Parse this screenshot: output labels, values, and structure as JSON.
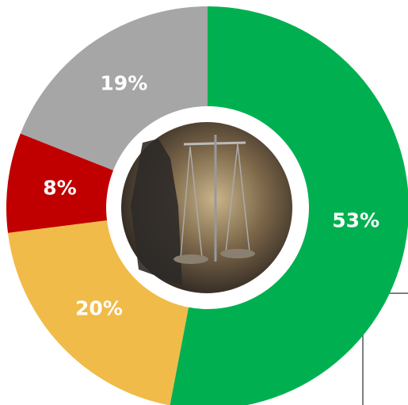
{
  "chart_data": {
    "type": "donut",
    "categories": [
      null,
      null,
      null,
      null
    ],
    "values": [
      53,
      20,
      8,
      19
    ],
    "value_labels": [
      "53%",
      "20%",
      "8%",
      "19%"
    ],
    "colors": [
      "#00b050",
      "#f0bb48",
      "#c00000",
      "#a6a6a6"
    ]
  }
}
